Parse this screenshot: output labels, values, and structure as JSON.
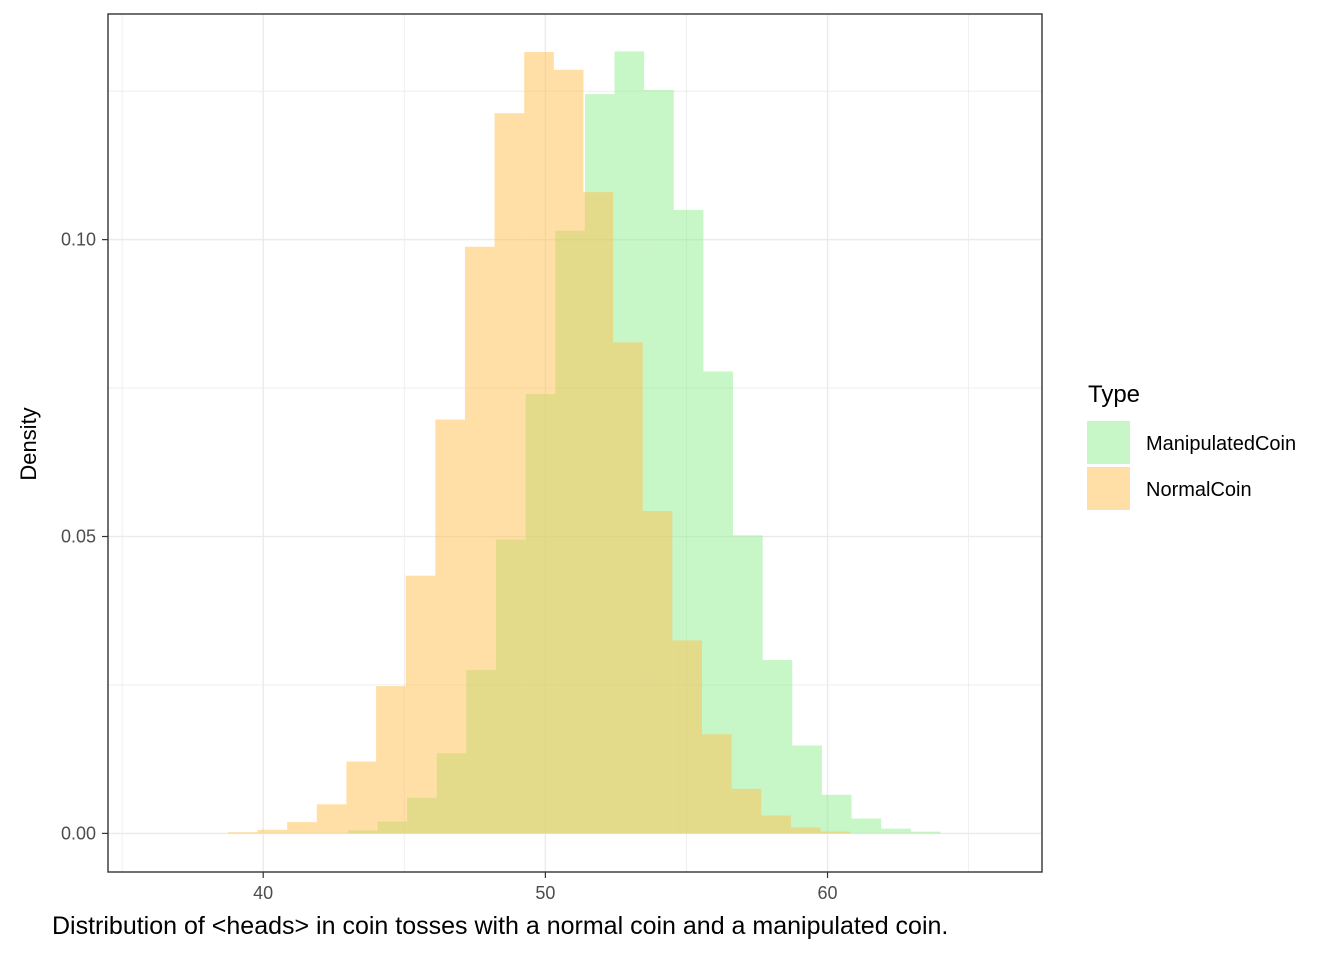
{
  "chart_data": {
    "type": "histogram",
    "xlabel": "",
    "ylabel": "Density",
    "caption": "Distribution of <heads> in coin tosses with a normal coin and a manipulated coin.",
    "xlim": [
      34.5,
      67.6
    ],
    "ylim": [
      -0.0065,
      0.138
    ],
    "x_ticks": [
      40,
      50,
      60
    ],
    "y_ticks": [
      0.0,
      0.05,
      0.1
    ],
    "y_tick_labels": [
      "0.00",
      "0.05",
      "0.10"
    ],
    "grid": true,
    "legend": {
      "title": "Type",
      "position": "right"
    },
    "bin_width": 1.05,
    "series": [
      {
        "name": "ManipulatedCoin",
        "color": "#90EE90",
        "bins": [
          {
            "x0": 43.0,
            "x1": 44.05,
            "density": 0.0005
          },
          {
            "x0": 44.05,
            "x1": 45.1,
            "density": 0.002
          },
          {
            "x0": 45.1,
            "x1": 46.15,
            "density": 0.006
          },
          {
            "x0": 46.15,
            "x1": 47.2,
            "density": 0.0135
          },
          {
            "x0": 47.2,
            "x1": 48.25,
            "density": 0.0275
          },
          {
            "x0": 48.25,
            "x1": 49.3,
            "density": 0.0495
          },
          {
            "x0": 49.3,
            "x1": 50.35,
            "density": 0.074
          },
          {
            "x0": 50.35,
            "x1": 51.4,
            "density": 0.1015
          },
          {
            "x0": 51.4,
            "x1": 52.45,
            "density": 0.1245
          },
          {
            "x0": 52.45,
            "x1": 53.5,
            "density": 0.1317
          },
          {
            "x0": 53.5,
            "x1": 54.55,
            "density": 0.1252
          },
          {
            "x0": 54.55,
            "x1": 55.6,
            "density": 0.105
          },
          {
            "x0": 55.6,
            "x1": 56.65,
            "density": 0.0778
          },
          {
            "x0": 56.65,
            "x1": 57.7,
            "density": 0.0502
          },
          {
            "x0": 57.7,
            "x1": 58.75,
            "density": 0.0292
          },
          {
            "x0": 58.75,
            "x1": 59.8,
            "density": 0.0148
          },
          {
            "x0": 59.8,
            "x1": 60.85,
            "density": 0.0065
          },
          {
            "x0": 60.85,
            "x1": 61.9,
            "density": 0.0025
          },
          {
            "x0": 61.9,
            "x1": 62.95,
            "density": 0.0008
          },
          {
            "x0": 62.95,
            "x1": 64.0,
            "density": 0.0003
          }
        ]
      },
      {
        "name": "NormalCoin",
        "color": "#FFC04D",
        "bins": [
          {
            "x0": 38.75,
            "x1": 39.8,
            "density": 0.0002
          },
          {
            "x0": 39.8,
            "x1": 40.85,
            "density": 0.0006
          },
          {
            "x0": 40.85,
            "x1": 41.9,
            "density": 0.0019
          },
          {
            "x0": 41.9,
            "x1": 42.95,
            "density": 0.0049
          },
          {
            "x0": 42.95,
            "x1": 44.0,
            "density": 0.0121
          },
          {
            "x0": 44.0,
            "x1": 45.05,
            "density": 0.0248
          },
          {
            "x0": 45.05,
            "x1": 46.1,
            "density": 0.0434
          },
          {
            "x0": 46.1,
            "x1": 47.15,
            "density": 0.0697
          },
          {
            "x0": 47.15,
            "x1": 48.2,
            "density": 0.0988
          },
          {
            "x0": 48.2,
            "x1": 49.25,
            "density": 0.1213
          },
          {
            "x0": 49.25,
            "x1": 50.3,
            "density": 0.1316
          },
          {
            "x0": 50.3,
            "x1": 51.35,
            "density": 0.1286
          },
          {
            "x0": 51.35,
            "x1": 52.4,
            "density": 0.108
          },
          {
            "x0": 52.4,
            "x1": 53.45,
            "density": 0.0827
          },
          {
            "x0": 53.45,
            "x1": 54.5,
            "density": 0.0543
          },
          {
            "x0": 54.5,
            "x1": 55.55,
            "density": 0.0325
          },
          {
            "x0": 55.55,
            "x1": 56.6,
            "density": 0.0167
          },
          {
            "x0": 56.6,
            "x1": 57.65,
            "density": 0.0075
          },
          {
            "x0": 57.65,
            "x1": 58.7,
            "density": 0.003
          },
          {
            "x0": 58.7,
            "x1": 59.75,
            "density": 0.001
          },
          {
            "x0": 59.75,
            "x1": 60.8,
            "density": 0.0003
          }
        ]
      }
    ]
  }
}
